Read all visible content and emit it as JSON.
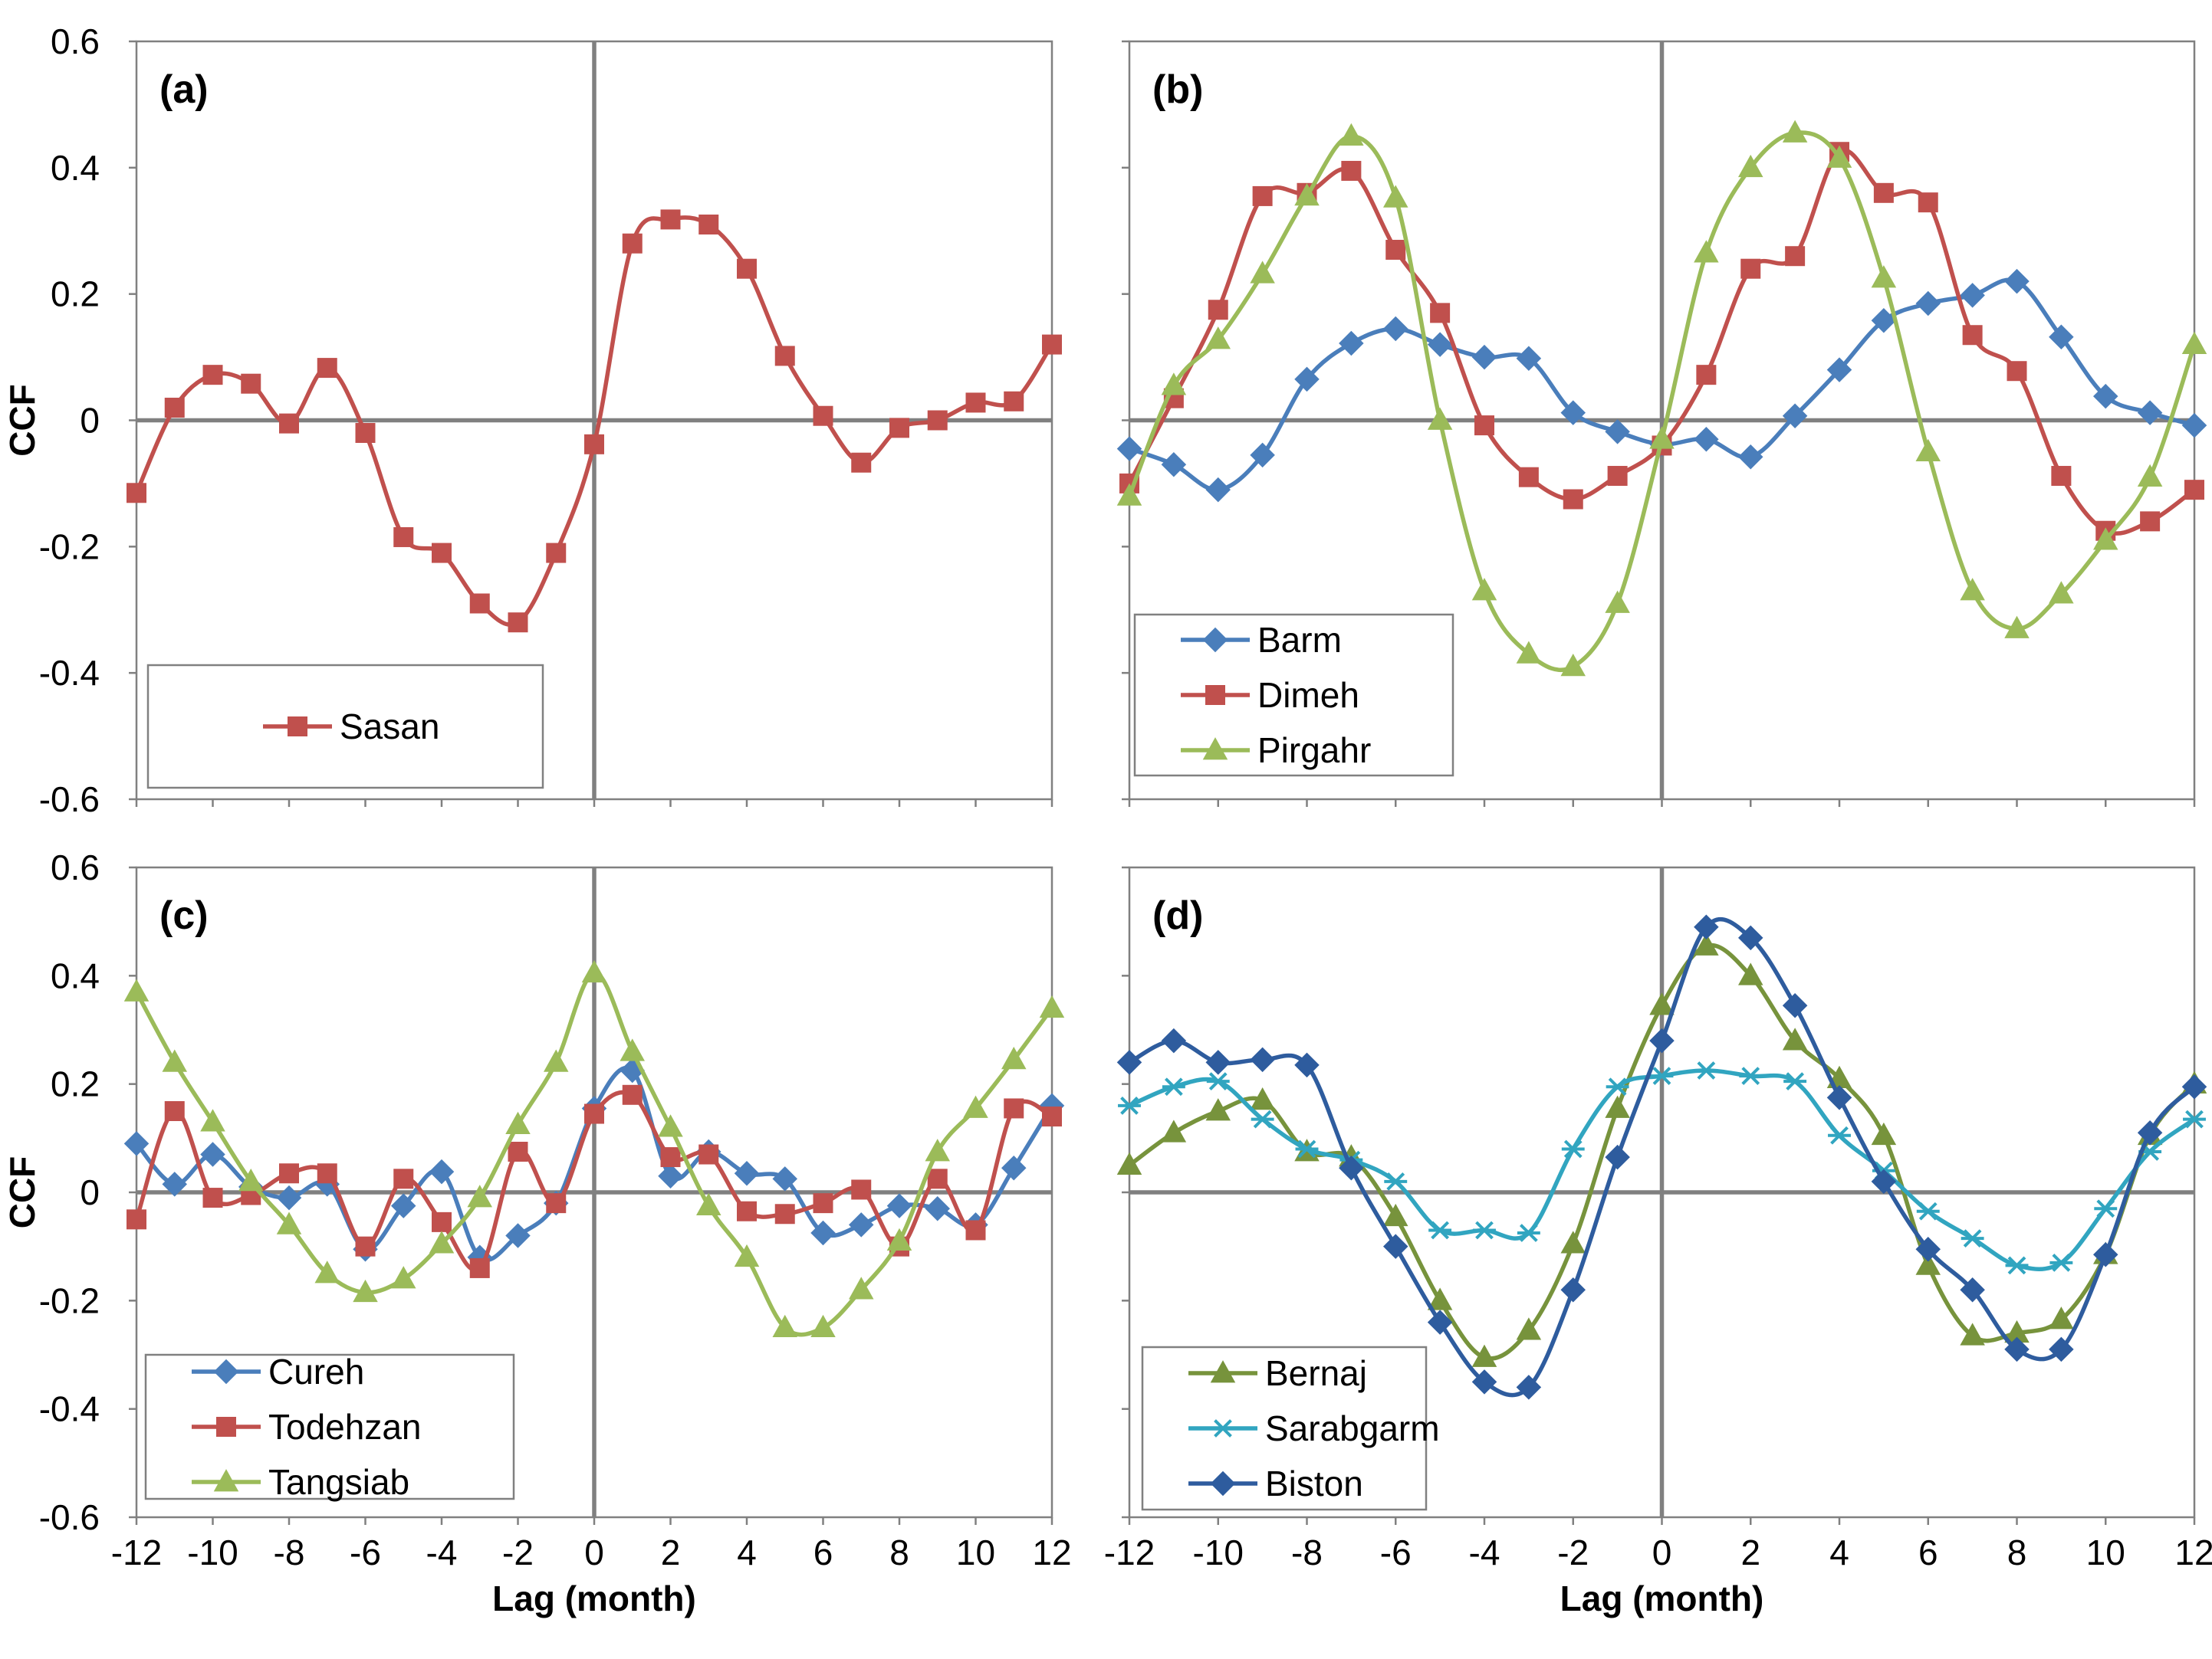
{
  "chart_data": [
    {
      "id": "a",
      "type": "line",
      "panel_label": "(a)",
      "xlabel": "",
      "ylabel": "CCF",
      "xlim": [
        -12,
        12
      ],
      "ylim": [
        -0.6,
        0.6
      ],
      "legend_position": "bottom-left",
      "series": [
        {
          "name": "Sasan",
          "color": "#c0504d",
          "marker": "square",
          "x": [
            -12,
            -11,
            -10,
            -9,
            -8,
            -7,
            -6,
            -5,
            -4,
            -3,
            -2,
            -1,
            0,
            1,
            2,
            3,
            4,
            5,
            6,
            7,
            8,
            9,
            10,
            11,
            12
          ],
          "values": [
            -0.115,
            0.02,
            0.072,
            0.058,
            -0.005,
            0.083,
            -0.02,
            -0.185,
            -0.21,
            -0.29,
            -0.32,
            -0.21,
            -0.038,
            0.28,
            0.318,
            0.31,
            0.24,
            0.102,
            0.007,
            -0.067,
            -0.012,
            0.0,
            0.028,
            0.03,
            0.12
          ]
        }
      ]
    },
    {
      "id": "b",
      "type": "line",
      "panel_label": "(b)",
      "xlabel": "",
      "ylabel": "",
      "xlim": [
        -12,
        12
      ],
      "ylim": [
        -0.6,
        0.6
      ],
      "legend_position": "bottom-left",
      "series": [
        {
          "name": "Barm",
          "color": "#4a7ebb",
          "marker": "diamond",
          "x": [
            -12,
            -11,
            -10,
            -9,
            -8,
            -7,
            -6,
            -5,
            -4,
            -3,
            -2,
            -1,
            0,
            1,
            2,
            3,
            4,
            5,
            6,
            7,
            8,
            9,
            10,
            11,
            12
          ],
          "values": [
            -0.045,
            -0.07,
            -0.11,
            -0.055,
            0.065,
            0.122,
            0.145,
            0.12,
            0.1,
            0.098,
            0.012,
            -0.018,
            -0.038,
            -0.03,
            -0.058,
            0.007,
            0.08,
            0.158,
            0.185,
            0.198,
            0.22,
            0.132,
            0.038,
            0.012,
            -0.008
          ]
        },
        {
          "name": "Dimeh",
          "color": "#c0504d",
          "marker": "square",
          "x": [
            -12,
            -11,
            -10,
            -9,
            -8,
            -7,
            -6,
            -5,
            -4,
            -3,
            -2,
            -1,
            0,
            1,
            2,
            3,
            4,
            5,
            6,
            7,
            8,
            9,
            10,
            11,
            12
          ],
          "values": [
            -0.1,
            0.035,
            0.175,
            0.355,
            0.36,
            0.395,
            0.27,
            0.17,
            -0.008,
            -0.09,
            -0.125,
            -0.088,
            -0.04,
            0.072,
            0.24,
            0.26,
            0.425,
            0.36,
            0.345,
            0.135,
            0.078,
            -0.088,
            -0.175,
            -0.16,
            -0.11
          ]
        },
        {
          "name": "Pirgahr",
          "color": "#9bbb59",
          "marker": "triangle",
          "x": [
            -12,
            -11,
            -10,
            -9,
            -8,
            -7,
            -6,
            -5,
            -4,
            -3,
            -2,
            -1,
            0,
            1,
            2,
            3,
            4,
            5,
            6,
            7,
            8,
            9,
            10,
            11,
            12
          ],
          "values": [
            -0.12,
            0.055,
            0.128,
            0.232,
            0.355,
            0.45,
            0.352,
            0.0,
            -0.27,
            -0.37,
            -0.39,
            -0.29,
            -0.03,
            0.265,
            0.4,
            0.455,
            0.415,
            0.225,
            -0.05,
            -0.27,
            -0.33,
            -0.275,
            -0.19,
            -0.09,
            0.12
          ]
        }
      ]
    },
    {
      "id": "c",
      "type": "line",
      "panel_label": "(c)",
      "xlabel": "Lag (month)",
      "ylabel": "CCF",
      "xlim": [
        -12,
        12
      ],
      "ylim": [
        -0.6,
        0.6
      ],
      "legend_position": "bottom-left",
      "series": [
        {
          "name": "Cureh",
          "color": "#4a7ebb",
          "marker": "diamond",
          "x": [
            -12,
            -11,
            -10,
            -9,
            -8,
            -7,
            -6,
            -5,
            -4,
            -3,
            -2,
            -1,
            0,
            1,
            2,
            3,
            4,
            5,
            6,
            7,
            8,
            9,
            10,
            11,
            12
          ],
          "values": [
            0.09,
            0.015,
            0.07,
            0.01,
            -0.01,
            0.015,
            -0.105,
            -0.025,
            0.038,
            -0.12,
            -0.08,
            -0.02,
            0.155,
            0.225,
            0.03,
            0.075,
            0.035,
            0.025,
            -0.075,
            -0.06,
            -0.025,
            -0.03,
            -0.06,
            0.045,
            0.16
          ]
        },
        {
          "name": "Todehzan",
          "color": "#c0504d",
          "marker": "square",
          "x": [
            -12,
            -11,
            -10,
            -9,
            -8,
            -7,
            -6,
            -5,
            -4,
            -3,
            -2,
            -1,
            0,
            1,
            2,
            3,
            4,
            5,
            6,
            7,
            8,
            9,
            10,
            11,
            12
          ],
          "values": [
            -0.05,
            0.15,
            -0.01,
            -0.005,
            0.035,
            0.035,
            -0.1,
            0.025,
            -0.055,
            -0.14,
            0.075,
            -0.02,
            0.145,
            0.18,
            0.065,
            0.07,
            -0.035,
            -0.04,
            -0.02,
            0.005,
            -0.1,
            0.025,
            -0.07,
            0.155,
            0.14
          ]
        },
        {
          "name": "Tangsiab",
          "color": "#9bbb59",
          "marker": "triangle",
          "x": [
            -12,
            -11,
            -10,
            -9,
            -8,
            -7,
            -6,
            -5,
            -4,
            -3,
            -2,
            -1,
            0,
            1,
            2,
            3,
            4,
            5,
            6,
            7,
            8,
            9,
            10,
            11,
            12
          ],
          "values": [
            0.37,
            0.24,
            0.13,
            0.02,
            -0.06,
            -0.15,
            -0.185,
            -0.16,
            -0.095,
            -0.01,
            0.125,
            0.24,
            0.405,
            0.26,
            0.12,
            -0.025,
            -0.12,
            -0.25,
            -0.25,
            -0.18,
            -0.09,
            0.075,
            0.155,
            0.245,
            0.34
          ]
        }
      ]
    },
    {
      "id": "d",
      "type": "line",
      "panel_label": "(d)",
      "xlabel": "Lag (month)",
      "ylabel": "",
      "xlim": [
        -12,
        12
      ],
      "ylim": [
        -0.6,
        0.6
      ],
      "legend_position": "bottom-left",
      "series": [
        {
          "name": "Bernaj",
          "color": "#77933c",
          "marker": "triangle",
          "x": [
            -12,
            -11,
            -10,
            -9,
            -8,
            -7,
            -6,
            -5,
            -4,
            -3,
            -2,
            -1,
            0,
            1,
            2,
            3,
            4,
            5,
            6,
            7,
            8,
            9,
            10,
            11,
            12
          ],
          "values": [
            0.05,
            0.11,
            0.15,
            0.17,
            0.075,
            0.065,
            -0.045,
            -0.2,
            -0.305,
            -0.255,
            -0.095,
            0.155,
            0.345,
            0.455,
            0.4,
            0.28,
            0.21,
            0.105,
            -0.135,
            -0.265,
            -0.26,
            -0.235,
            -0.115,
            0.105,
            0.2
          ]
        },
        {
          "name": "Sarabgarm",
          "color": "#31a5c0",
          "marker": "star",
          "x": [
            -12,
            -11,
            -10,
            -9,
            -8,
            -7,
            -6,
            -5,
            -4,
            -3,
            -2,
            -1,
            0,
            1,
            2,
            3,
            4,
            5,
            6,
            7,
            8,
            9,
            10,
            11,
            12
          ],
          "values": [
            0.16,
            0.195,
            0.205,
            0.135,
            0.08,
            0.06,
            0.02,
            -0.07,
            -0.07,
            -0.075,
            0.08,
            0.195,
            0.215,
            0.225,
            0.215,
            0.205,
            0.105,
            0.04,
            -0.035,
            -0.085,
            -0.135,
            -0.13,
            -0.03,
            0.075,
            0.135
          ]
        },
        {
          "name": "Biston",
          "color": "#2e5c9e",
          "marker": "diamond",
          "x": [
            -12,
            -11,
            -10,
            -9,
            -8,
            -7,
            -6,
            -5,
            -4,
            -3,
            -2,
            -1,
            0,
            1,
            2,
            3,
            4,
            5,
            6,
            7,
            8,
            9,
            10,
            11,
            12
          ],
          "values": [
            0.24,
            0.28,
            0.24,
            0.245,
            0.235,
            0.045,
            -0.1,
            -0.24,
            -0.35,
            -0.36,
            -0.18,
            0.065,
            0.28,
            0.49,
            0.47,
            0.345,
            0.175,
            0.02,
            -0.105,
            -0.18,
            -0.29,
            -0.29,
            -0.115,
            0.11,
            0.195
          ]
        }
      ]
    }
  ]
}
